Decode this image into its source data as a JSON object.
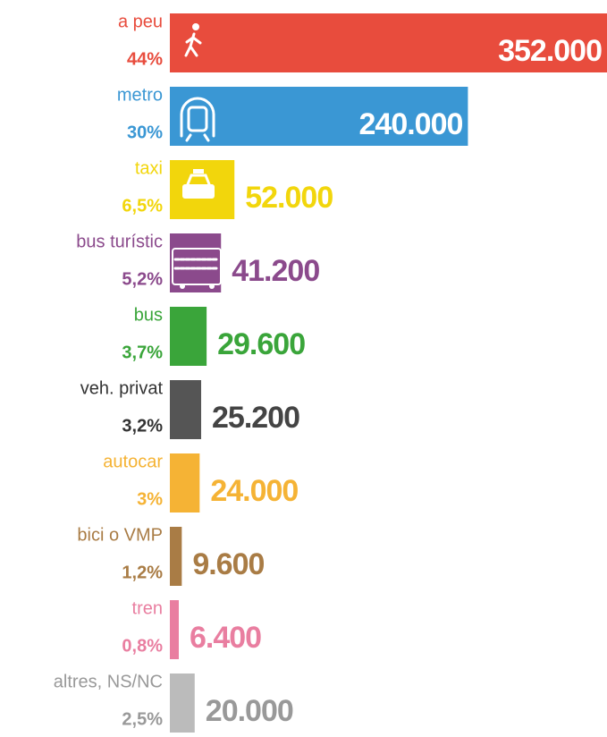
{
  "chart_data": {
    "type": "bar",
    "orientation": "horizontal",
    "categories": [
      "a peu",
      "metro",
      "taxi",
      "bus turístic",
      "bus",
      "veh. privat",
      "autocar",
      "bici o VMP",
      "tren",
      "altres, NS/NC"
    ],
    "values": [
      352000,
      240000,
      52000,
      41200,
      29600,
      25200,
      24000,
      9600,
      6400,
      20000
    ],
    "value_labels": [
      "352.000",
      "240.000",
      "52.000",
      "41.200",
      "29.600",
      "25.200",
      "24.000",
      "9.600",
      "6.400",
      "20.000"
    ],
    "shares": [
      44,
      30,
      6.5,
      5.2,
      3.7,
      3.2,
      3,
      1.2,
      0.8,
      2.5
    ],
    "share_labels": [
      "44%",
      "30%",
      "6,5%",
      "5,2%",
      "3,7%",
      "3,2%",
      "3%",
      "1,2%",
      "0,8%",
      "2,5%"
    ],
    "colors": [
      "#e84c3d",
      "#3a97d4",
      "#f2d60c",
      "#8b4a8c",
      "#3aa53a",
      "#555555",
      "#f5b335",
      "#a97c45",
      "#e97ea0",
      "#bbbbbb"
    ]
  }
}
